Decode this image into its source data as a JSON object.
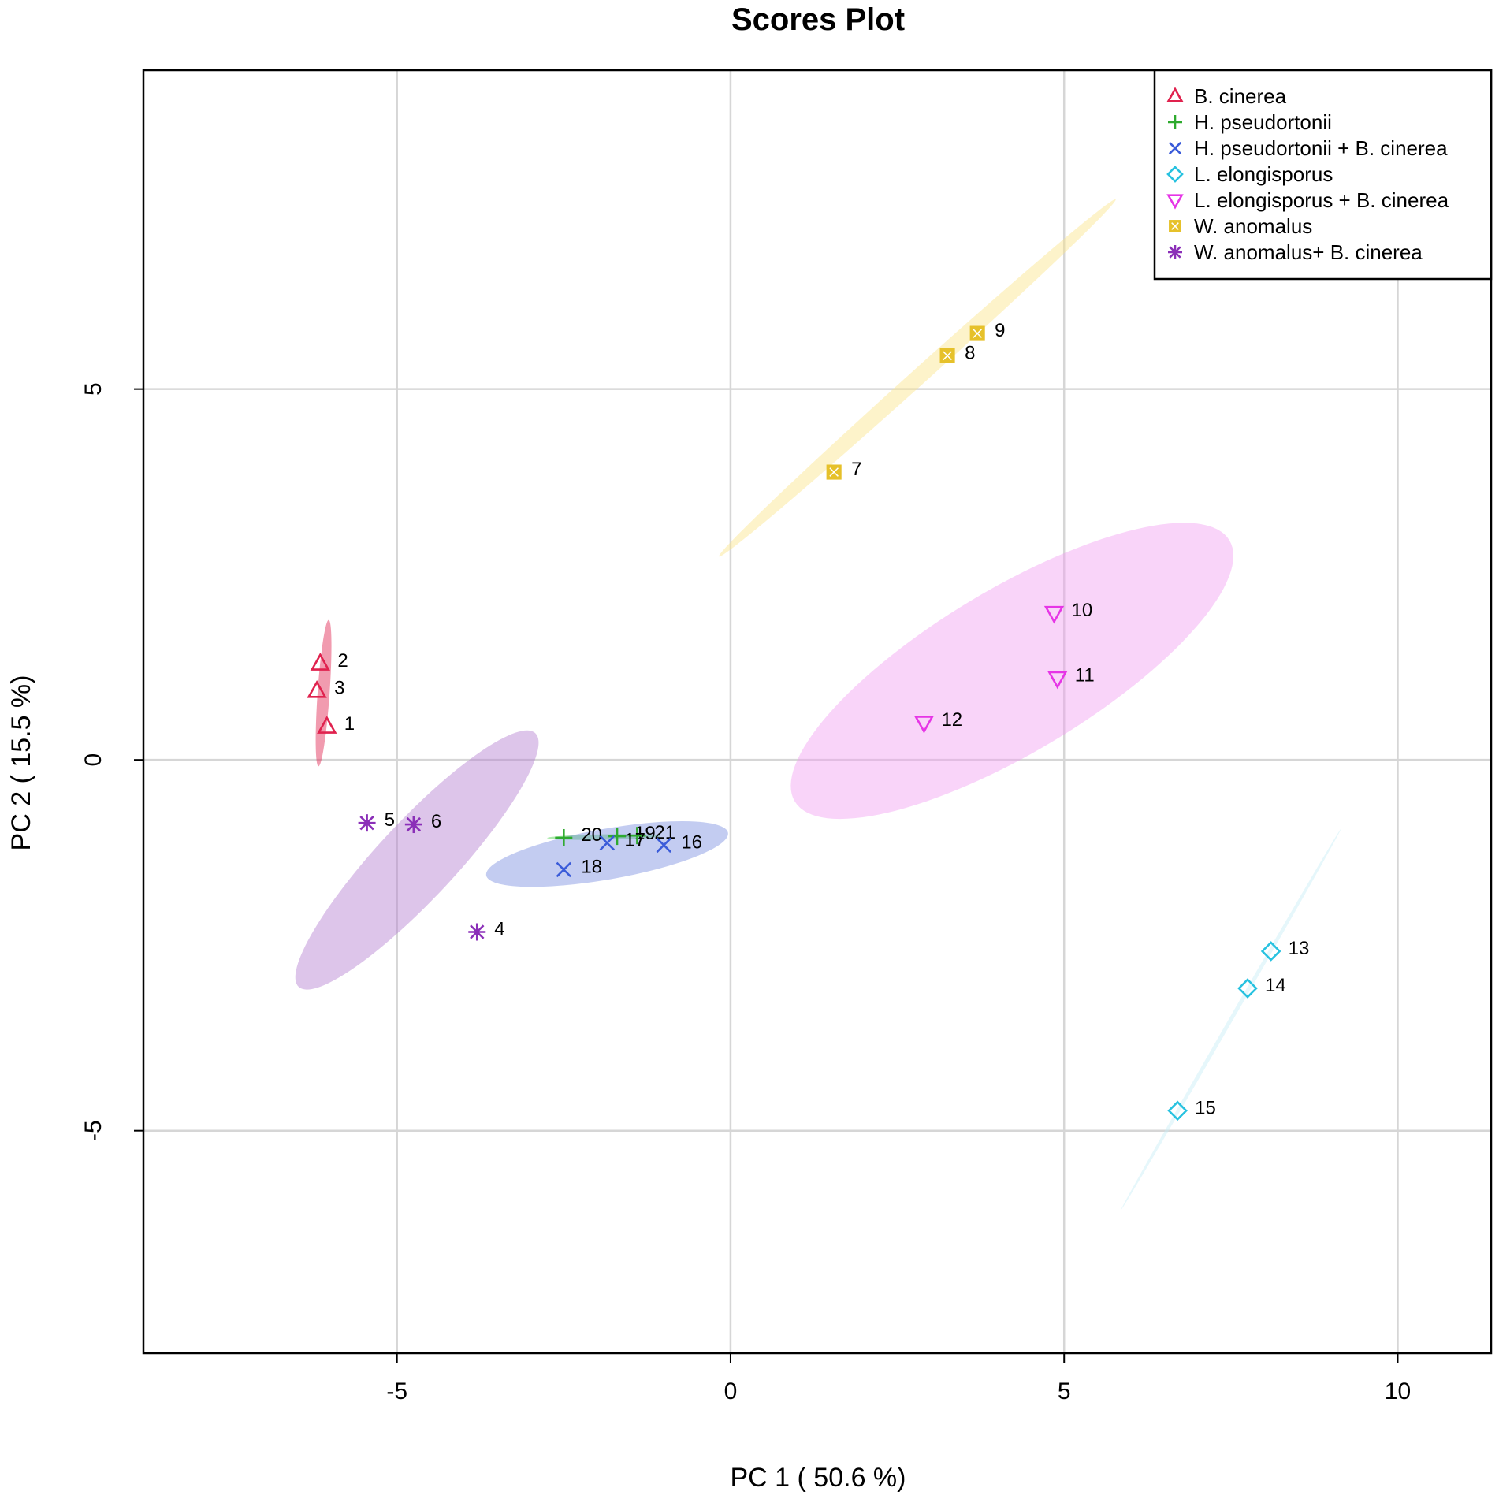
{
  "chart_data": {
    "type": "scatter",
    "title": "Scores Plot",
    "xlabel": "PC 1 ( 50.6 %)",
    "ylabel": "PC 2 ( 15.5 %)",
    "xlim": [
      -8.8,
      11.4
    ],
    "ylim": [
      -8.0,
      9.3
    ],
    "xticks": [
      -5,
      0,
      5,
      10
    ],
    "yticks": [
      -5,
      0,
      5
    ],
    "xtick_labels": [
      "-5",
      "0",
      "5",
      "10"
    ],
    "ytick_labels": [
      "-5",
      "0",
      "5"
    ],
    "grid": true,
    "legend_position": "top-right",
    "series": [
      {
        "name": "B. cinerea",
        "marker": "triangle-up",
        "color": "#e0224e",
        "fill": "#e0224e",
        "points": [
          {
            "label": "1",
            "x": -6.05,
            "y": 0.45
          },
          {
            "label": "2",
            "x": -6.15,
            "y": 1.3
          },
          {
            "label": "3",
            "x": -6.2,
            "y": 0.93
          }
        ],
        "ellipse": {
          "cx": -6.1,
          "cy": 0.9,
          "rx": 1.1,
          "ry": 0.09,
          "angle_deg": 86
        }
      },
      {
        "name": "H. pseudortonii",
        "marker": "plus",
        "color": "#2eaa2e",
        "fill": "#4cd04c",
        "points": [
          {
            "label": "19",
            "x": -1.7,
            "y": -1.03
          },
          {
            "label": "20",
            "x": -2.5,
            "y": -1.05
          },
          {
            "label": "21",
            "x": -1.4,
            "y": -1.02
          }
        ],
        "ellipse": {
          "cx": -1.9,
          "cy": -1.04,
          "rx": 0.85,
          "ry": 0.04,
          "angle_deg": 1
        }
      },
      {
        "name": "H. pseudortonii + B. cinerea",
        "marker": "x",
        "color": "#3a5bd9",
        "fill": "#7a8fe0",
        "points": [
          {
            "label": "16",
            "x": -1.0,
            "y": -1.15
          },
          {
            "label": "17",
            "x": -1.85,
            "y": -1.12
          },
          {
            "label": "18",
            "x": -2.5,
            "y": -1.48
          }
        ],
        "ellipse": {
          "cx": -1.85,
          "cy": -1.27,
          "rx": 1.84,
          "ry": 0.38,
          "angle_deg": 10
        }
      },
      {
        "name": "L. elongisporus",
        "marker": "diamond",
        "color": "#27c2e0",
        "fill": "#c8eef7",
        "points": [
          {
            "label": "13",
            "x": 8.1,
            "y": -2.58
          },
          {
            "label": "14",
            "x": 7.75,
            "y": -3.08
          },
          {
            "label": "15",
            "x": 6.7,
            "y": -4.73
          }
        ],
        "ellipse": {
          "cx": 7.5,
          "cy": -3.5,
          "rx": 3.3,
          "ry": 0.03,
          "angle_deg": 60
        }
      },
      {
        "name": "L. elongisporus + B. cinerea",
        "marker": "triangle-down",
        "color": "#e635e6",
        "fill": "#f2a0f2",
        "points": [
          {
            "label": "10",
            "x": 4.85,
            "y": 1.98
          },
          {
            "label": "11",
            "x": 4.9,
            "y": 1.1
          },
          {
            "label": "12",
            "x": 2.9,
            "y": 0.5
          }
        ],
        "ellipse": {
          "cx": 4.22,
          "cy": 1.2,
          "rx": 3.8,
          "ry": 1.22,
          "angle_deg": 31
        }
      },
      {
        "name": "W. anomalus",
        "marker": "square-x",
        "color": "#e6c12a",
        "fill": "#fbe58a",
        "points": [
          {
            "label": "7",
            "x": 1.55,
            "y": 3.88
          },
          {
            "label": "8",
            "x": 3.25,
            "y": 5.45
          },
          {
            "label": "9",
            "x": 3.7,
            "y": 5.75
          }
        ],
        "ellipse": {
          "cx": 2.8,
          "cy": 5.15,
          "rx": 4.0,
          "ry": 0.12,
          "angle_deg": 42
        }
      },
      {
        "name": "W. anomalus+ B. cinerea",
        "marker": "asterisk",
        "color": "#8b2fb8",
        "fill": "#b37fd0",
        "points": [
          {
            "label": "4",
            "x": -3.8,
            "y": -2.32
          },
          {
            "label": "5",
            "x": -5.45,
            "y": -0.85
          },
          {
            "label": "6",
            "x": -4.75,
            "y": -0.87
          }
        ],
        "ellipse": {
          "cx": -4.7,
          "cy": -1.35,
          "rx": 2.6,
          "ry": 0.58,
          "angle_deg": 47
        }
      }
    ]
  }
}
